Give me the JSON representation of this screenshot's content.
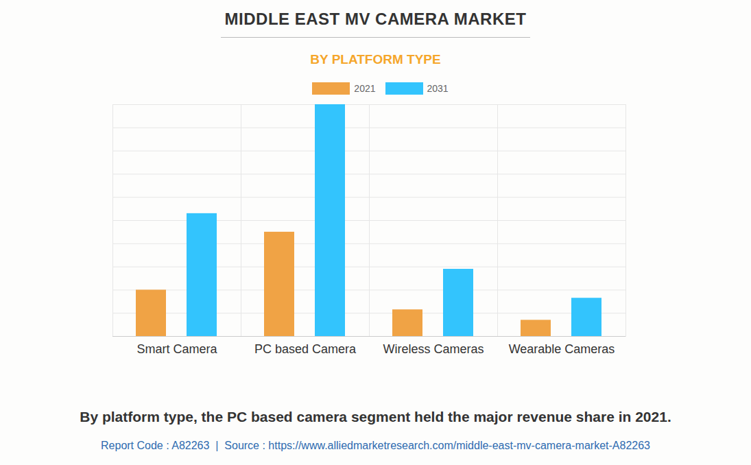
{
  "chart_data": {
    "type": "bar",
    "title": "MIDDLE EAST MV CAMERA MARKET",
    "subtitle": "BY PLATFORM TYPE",
    "categories": [
      "Smart Camera",
      "PC based Camera",
      "Wireless Cameras",
      "Wearable Cameras"
    ],
    "series": [
      {
        "name": "2021",
        "color": "#f0a345",
        "values": [
          2.0,
          4.5,
          1.15,
          0.7
        ]
      },
      {
        "name": "2031",
        "color": "#33c4fd",
        "values": [
          5.3,
          10.0,
          2.9,
          1.65
        ]
      }
    ],
    "ylim": [
      0,
      10
    ],
    "yticks": [
      0,
      1,
      2,
      3,
      4,
      5,
      6,
      7,
      8,
      9,
      10
    ],
    "grid": true,
    "tick_labels": "x",
    "legend": "top",
    "caption": "By platform type, the PC based camera segment held the major revenue share in 2021.",
    "source": "Report Code : A82263  |  Source : https://www.alliedmarketresearch.com/middle-east-mv-camera-market-A82263"
  }
}
